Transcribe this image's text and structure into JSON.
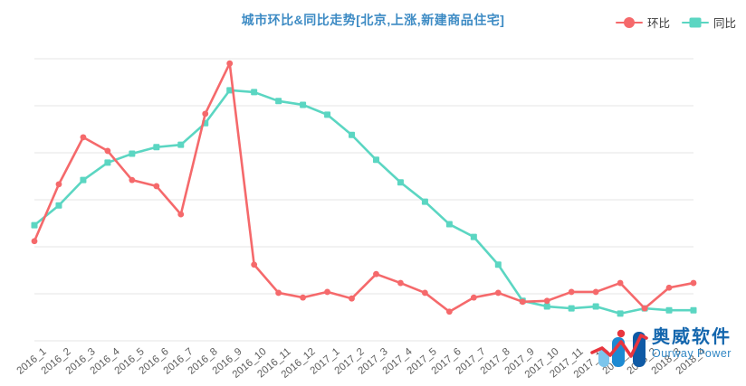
{
  "title": {
    "text": "城市环比&同比走势[北京,上涨,新建商品住宅]",
    "color": "#3d8bc4"
  },
  "legend": {
    "items": [
      {
        "label": "环比",
        "color": "#f5696b",
        "marker": "circle"
      },
      {
        "label": "同比",
        "color": "#5bd6c2",
        "marker": "square"
      }
    ]
  },
  "watermark": {
    "cn": "奥威软件",
    "en": "Ourway Power"
  },
  "chart_data": {
    "type": "line",
    "title": "城市环比&同比走势[北京,上涨,新建商品住宅]",
    "categories": [
      "2016_1",
      "2016_2",
      "2016_3",
      "2016_4",
      "2016_5",
      "2016_6",
      "2016_7",
      "2016_8",
      "2016_9",
      "2016_10",
      "2016_11",
      "2016_12",
      "2017_1",
      "2017_2",
      "2017_3",
      "2017_4",
      "2017_5",
      "2017_6",
      "2017_7",
      "2017_8",
      "2017_9",
      "2017_10",
      "2017_11",
      "2017_12",
      "2018_1",
      "2018_2",
      "2018_3",
      "2018_4"
    ],
    "series": [
      {
        "name": "环比",
        "color": "#f5696b",
        "marker": "circle",
        "values": [
          2.12,
          3.33,
          4.33,
          4.04,
          3.42,
          3.29,
          2.69,
          4.83,
          5.9,
          1.62,
          1.02,
          0.92,
          1.04,
          0.9,
          1.42,
          1.23,
          1.02,
          0.62,
          0.92,
          1.02,
          0.83,
          0.85,
          1.04,
          1.04,
          1.23,
          0.69,
          1.13,
          1.23
        ]
      },
      {
        "name": "同比",
        "color": "#5bd6c2",
        "marker": "square",
        "values": [
          2.46,
          2.88,
          3.42,
          3.79,
          3.98,
          4.12,
          4.17,
          4.63,
          5.33,
          5.29,
          5.1,
          5.02,
          4.81,
          4.38,
          3.85,
          3.37,
          2.96,
          2.48,
          2.21,
          1.62,
          0.85,
          0.73,
          0.69,
          0.73,
          0.58,
          0.69,
          0.65,
          0.65
        ]
      }
    ],
    "xlabel": "",
    "ylabel": "",
    "ylim": [
      0,
      6.2
    ],
    "y_gridlines": 6,
    "y_axis_labels_visible": false,
    "grid": "horizontal-only",
    "legend_position": "top-right",
    "x_label_rotation_deg": -40,
    "gridline_color": "#e4e4e4"
  }
}
